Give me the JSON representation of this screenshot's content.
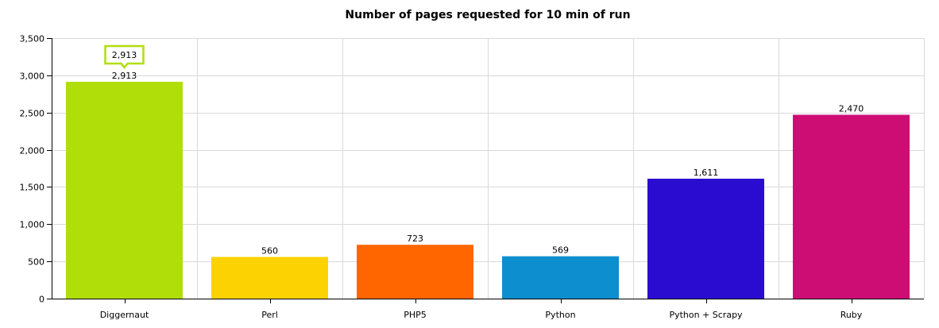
{
  "chart_data": {
    "type": "bar",
    "title": "Number of pages requested for 10 min of run",
    "xlabel": "",
    "ylabel": "",
    "categories": [
      "Diggernaut",
      "Perl",
      "PHP5",
      "Python",
      "Python + Scrapy",
      "Ruby"
    ],
    "values": [
      2913,
      560,
      723,
      569,
      1611,
      2470
    ],
    "value_labels": [
      "2,913",
      "560",
      "723",
      "569",
      "1,611",
      "2,470"
    ],
    "colors": [
      "#b0de09",
      "#fcd202",
      "#ff6600",
      "#0d8ecf",
      "#2a0cd0",
      "#cd0d74"
    ],
    "ylim": [
      0,
      3500
    ],
    "yticks": [
      0,
      500,
      1000,
      1500,
      2000,
      2500,
      3000,
      3500
    ],
    "ytick_labels": [
      "0",
      "500",
      "1,000",
      "1,500",
      "2,000",
      "2,500",
      "3,000",
      "3,500"
    ],
    "grid": true,
    "legend": "none",
    "tooltip": {
      "category": "Diggernaut",
      "text": "2,913",
      "border_color": "#b0de09"
    }
  }
}
